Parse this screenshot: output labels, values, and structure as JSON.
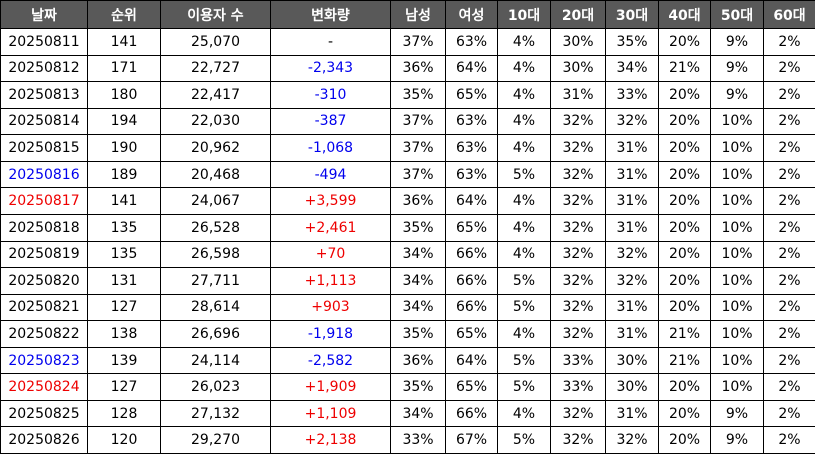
{
  "table": {
    "columns": [
      "날짜",
      "순위",
      "이용자 수",
      "변화량",
      "남성",
      "여성",
      "10대",
      "20대",
      "30대",
      "40대",
      "50대",
      "60대"
    ],
    "rows": [
      [
        "20250811",
        "141",
        "25,070",
        "-",
        "37%",
        "63%",
        "4%",
        "30%",
        "35%",
        "20%",
        "9%",
        "2%"
      ],
      [
        "20250812",
        "171",
        "22,727",
        "-2,343",
        "36%",
        "64%",
        "4%",
        "30%",
        "34%",
        "21%",
        "9%",
        "2%"
      ],
      [
        "20250813",
        "180",
        "22,417",
        "-310",
        "35%",
        "65%",
        "4%",
        "31%",
        "33%",
        "20%",
        "9%",
        "2%"
      ],
      [
        "20250814",
        "194",
        "22,030",
        "-387",
        "37%",
        "63%",
        "4%",
        "32%",
        "32%",
        "20%",
        "10%",
        "2%"
      ],
      [
        "20250815",
        "190",
        "20,962",
        "-1,068",
        "37%",
        "63%",
        "4%",
        "32%",
        "31%",
        "20%",
        "10%",
        "2%"
      ],
      [
        "20250816",
        "189",
        "20,468",
        "-494",
        "37%",
        "63%",
        "5%",
        "32%",
        "31%",
        "20%",
        "10%",
        "2%"
      ],
      [
        "20250817",
        "141",
        "24,067",
        "+3,599",
        "36%",
        "64%",
        "4%",
        "32%",
        "31%",
        "20%",
        "10%",
        "2%"
      ],
      [
        "20250818",
        "135",
        "26,528",
        "+2,461",
        "35%",
        "65%",
        "4%",
        "32%",
        "31%",
        "20%",
        "10%",
        "2%"
      ],
      [
        "20250819",
        "135",
        "26,598",
        "+70",
        "34%",
        "66%",
        "4%",
        "32%",
        "32%",
        "20%",
        "10%",
        "2%"
      ],
      [
        "20250820",
        "131",
        "27,711",
        "+1,113",
        "34%",
        "66%",
        "5%",
        "32%",
        "32%",
        "20%",
        "10%",
        "2%"
      ],
      [
        "20250821",
        "127",
        "28,614",
        "+903",
        "34%",
        "66%",
        "5%",
        "32%",
        "31%",
        "20%",
        "10%",
        "2%"
      ],
      [
        "20250822",
        "138",
        "26,696",
        "-1,918",
        "35%",
        "65%",
        "4%",
        "32%",
        "31%",
        "21%",
        "10%",
        "2%"
      ],
      [
        "20250823",
        "139",
        "24,114",
        "-2,582",
        "36%",
        "64%",
        "5%",
        "33%",
        "30%",
        "21%",
        "10%",
        "2%"
      ],
      [
        "20250824",
        "127",
        "26,023",
        "+1,909",
        "35%",
        "65%",
        "5%",
        "33%",
        "30%",
        "20%",
        "10%",
        "2%"
      ],
      [
        "20250825",
        "128",
        "27,132",
        "+1,109",
        "34%",
        "66%",
        "4%",
        "32%",
        "31%",
        "20%",
        "9%",
        "2%"
      ],
      [
        "20250826",
        "120",
        "29,270",
        "+2,138",
        "33%",
        "67%",
        "5%",
        "32%",
        "32%",
        "20%",
        "9%",
        "2%"
      ]
    ],
    "date_colors": [
      null,
      null,
      null,
      null,
      null,
      "#0000ee",
      "#ee0000",
      null,
      null,
      null,
      null,
      null,
      "#0000ee",
      "#ee0000",
      null,
      null
    ],
    "increase_color": "#ee0000",
    "decrease_color": "#0000ee"
  }
}
